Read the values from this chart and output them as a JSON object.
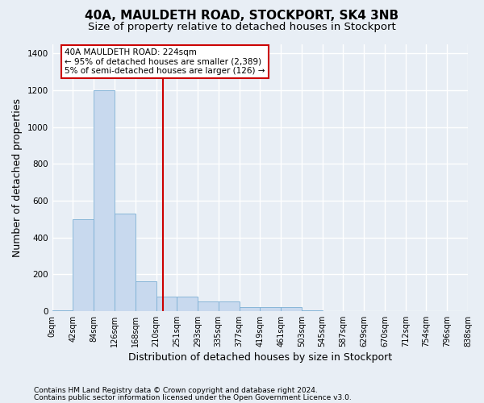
{
  "title": "40A, MAULDETH ROAD, STOCKPORT, SK4 3NB",
  "subtitle": "Size of property relative to detached houses in Stockport",
  "xlabel": "Distribution of detached houses by size in Stockport",
  "ylabel": "Number of detached properties",
  "footnote1": "Contains HM Land Registry data © Crown copyright and database right 2024.",
  "footnote2": "Contains public sector information licensed under the Open Government Licence v3.0.",
  "bin_labels": [
    "0sqm",
    "42sqm",
    "84sqm",
    "126sqm",
    "168sqm",
    "210sqm",
    "251sqm",
    "293sqm",
    "335sqm",
    "377sqm",
    "419sqm",
    "461sqm",
    "503sqm",
    "545sqm",
    "587sqm",
    "629sqm",
    "670sqm",
    "712sqm",
    "754sqm",
    "796sqm",
    "838sqm"
  ],
  "bar_heights": [
    2,
    500,
    1200,
    530,
    160,
    80,
    80,
    50,
    50,
    20,
    20,
    20,
    2,
    0,
    0,
    0,
    0,
    0,
    0,
    0
  ],
  "bar_color": "#c8d9ee",
  "bar_edge_color": "#7bafd4",
  "vline_color": "#cc0000",
  "vline_x": 5.34,
  "annotation_text": "40A MAULDETH ROAD: 224sqm\n← 95% of detached houses are smaller (2,389)\n5% of semi-detached houses are larger (126) →",
  "annotation_box_facecolor": "#ffffff",
  "annotation_box_edgecolor": "#cc0000",
  "ylim": [
    0,
    1450
  ],
  "yticks": [
    0,
    200,
    400,
    600,
    800,
    1000,
    1200,
    1400
  ],
  "bg_color": "#e8eef5",
  "grid_color": "#ffffff",
  "title_fontsize": 11,
  "subtitle_fontsize": 9.5,
  "tick_fontsize": 7,
  "label_fontsize": 9,
  "footnote_fontsize": 6.5
}
